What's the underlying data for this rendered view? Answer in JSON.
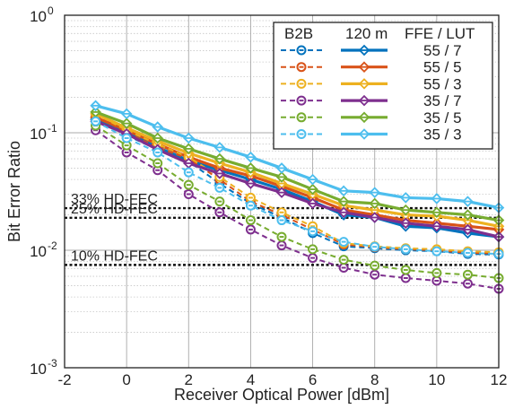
{
  "chart_data": {
    "type": "line",
    "xlabel": "Receiver Optical Power [dBm]",
    "ylabel": "Bit Error Ratio",
    "xlim": [
      -2,
      12
    ],
    "ylim": [
      0.001,
      1
    ],
    "yscale": "log",
    "grid": true,
    "x_ticks": [
      "-2",
      "0",
      "2",
      "4",
      "6",
      "8",
      "10",
      "12"
    ],
    "y_ticks": [
      {
        "base": "10",
        "exp": "-3"
      },
      {
        "base": "10",
        "exp": "-2"
      },
      {
        "base": "10",
        "exp": "-1"
      },
      {
        "base": "10",
        "exp": "0"
      }
    ],
    "legend": {
      "position": "top-right",
      "headers": {
        "b2b": "B2B",
        "fiber": "120 m",
        "config": "FFE / LUT"
      }
    },
    "thresholds": [
      {
        "label": "33% HD-FEC",
        "value": 0.0228
      },
      {
        "label": "25% HD-FEC",
        "value": 0.0189
      },
      {
        "label": "10% HD-FEC",
        "value": 0.0075
      }
    ],
    "x": [
      -1,
      0,
      1,
      2,
      3,
      4,
      5,
      6,
      7,
      8,
      9,
      10,
      11,
      12
    ],
    "series": [
      {
        "name": "55 / 7",
        "color": "#0072BD",
        "b2b": [
          0.135,
          0.095,
          0.072,
          0.057,
          0.037,
          0.025,
          0.019,
          0.014,
          0.0108,
          0.0104,
          0.01,
          0.0098,
          0.0093,
          0.0092
        ],
        "fiber": [
          0.13,
          0.1,
          0.075,
          0.058,
          0.048,
          0.04,
          0.033,
          0.026,
          0.02,
          0.019,
          0.016,
          0.0155,
          0.014,
          0.013
        ]
      },
      {
        "name": "55 / 5",
        "color": "#D95319",
        "b2b": [
          0.14,
          0.1,
          0.075,
          0.06,
          0.04,
          0.026,
          0.02,
          0.015,
          0.0112,
          0.0106,
          0.0102,
          0.01,
          0.0095,
          0.0094
        ],
        "fiber": [
          0.135,
          0.105,
          0.08,
          0.062,
          0.05,
          0.043,
          0.035,
          0.028,
          0.022,
          0.02,
          0.018,
          0.017,
          0.016,
          0.015
        ]
      },
      {
        "name": "55 / 3",
        "color": "#EDB120",
        "b2b": [
          0.145,
          0.105,
          0.08,
          0.062,
          0.042,
          0.028,
          0.021,
          0.016,
          0.0115,
          0.0108,
          0.0104,
          0.0102,
          0.0098,
          0.0096
        ],
        "fiber": [
          0.145,
          0.11,
          0.085,
          0.067,
          0.055,
          0.046,
          0.037,
          0.03,
          0.024,
          0.022,
          0.02,
          0.0195,
          0.018,
          0.016
        ]
      },
      {
        "name": "35 / 7",
        "color": "#7E2F8E",
        "b2b": [
          0.105,
          0.068,
          0.048,
          0.03,
          0.021,
          0.015,
          0.011,
          0.0086,
          0.0071,
          0.0062,
          0.0058,
          0.0055,
          0.0052,
          0.0047
        ],
        "fiber": [
          0.125,
          0.098,
          0.072,
          0.055,
          0.045,
          0.037,
          0.031,
          0.025,
          0.021,
          0.019,
          0.017,
          0.016,
          0.015,
          0.013
        ]
      },
      {
        "name": "35 / 5",
        "color": "#77AC30",
        "b2b": [
          0.115,
          0.078,
          0.055,
          0.036,
          0.026,
          0.018,
          0.013,
          0.0102,
          0.0083,
          0.0074,
          0.0068,
          0.0064,
          0.0062,
          0.0058
        ],
        "fiber": [
          0.15,
          0.12,
          0.09,
          0.073,
          0.06,
          0.05,
          0.042,
          0.033,
          0.026,
          0.025,
          0.022,
          0.021,
          0.02,
          0.018
        ]
      },
      {
        "name": "35 / 3",
        "color": "#4DBEEE",
        "b2b": [
          0.125,
          0.09,
          0.068,
          0.046,
          0.034,
          0.024,
          0.018,
          0.0145,
          0.0118,
          0.0107,
          0.0102,
          0.0098,
          0.0095,
          0.0093
        ],
        "fiber": [
          0.17,
          0.145,
          0.112,
          0.09,
          0.075,
          0.062,
          0.05,
          0.04,
          0.032,
          0.031,
          0.028,
          0.0275,
          0.026,
          0.023
        ]
      }
    ]
  }
}
